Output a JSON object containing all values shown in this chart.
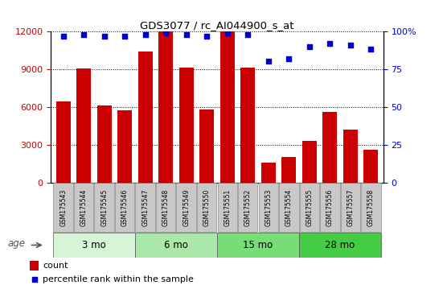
{
  "title": "GDS3077 / rc_AI044900_s_at",
  "samples": [
    "GSM175543",
    "GSM175544",
    "GSM175545",
    "GSM175546",
    "GSM175547",
    "GSM175548",
    "GSM175549",
    "GSM175550",
    "GSM175551",
    "GSM175552",
    "GSM175553",
    "GSM175554",
    "GSM175555",
    "GSM175556",
    "GSM175557",
    "GSM175558"
  ],
  "counts": [
    6400,
    9050,
    6100,
    5750,
    10400,
    12000,
    9100,
    5800,
    12000,
    9100,
    1600,
    2000,
    3300,
    5600,
    4200,
    2600
  ],
  "percentiles": [
    97,
    98,
    97,
    97,
    98,
    99,
    98,
    97,
    99,
    98,
    80,
    82,
    90,
    92,
    91,
    88
  ],
  "bar_color": "#cc0000",
  "dot_color": "#0000cc",
  "ylim_left": [
    0,
    12000
  ],
  "ylim_right": [
    0,
    100
  ],
  "yticks_left": [
    0,
    3000,
    6000,
    9000,
    12000
  ],
  "yticks_right": [
    0,
    25,
    50,
    75,
    100
  ],
  "groups": [
    {
      "label": "3 mo",
      "start": 0,
      "end": 3,
      "color": "#d6f5d6"
    },
    {
      "label": "6 mo",
      "start": 4,
      "end": 7,
      "color": "#aae8aa"
    },
    {
      "label": "15 mo",
      "start": 8,
      "end": 11,
      "color": "#77dd77"
    },
    {
      "label": "28 mo",
      "start": 12,
      "end": 15,
      "color": "#44cc44"
    }
  ],
  "age_label": "age",
  "legend_count_label": "count",
  "legend_pct_label": "percentile rank within the sample",
  "sample_box_color": "#c8c8c8",
  "fig_bg": "#f0f0f0"
}
